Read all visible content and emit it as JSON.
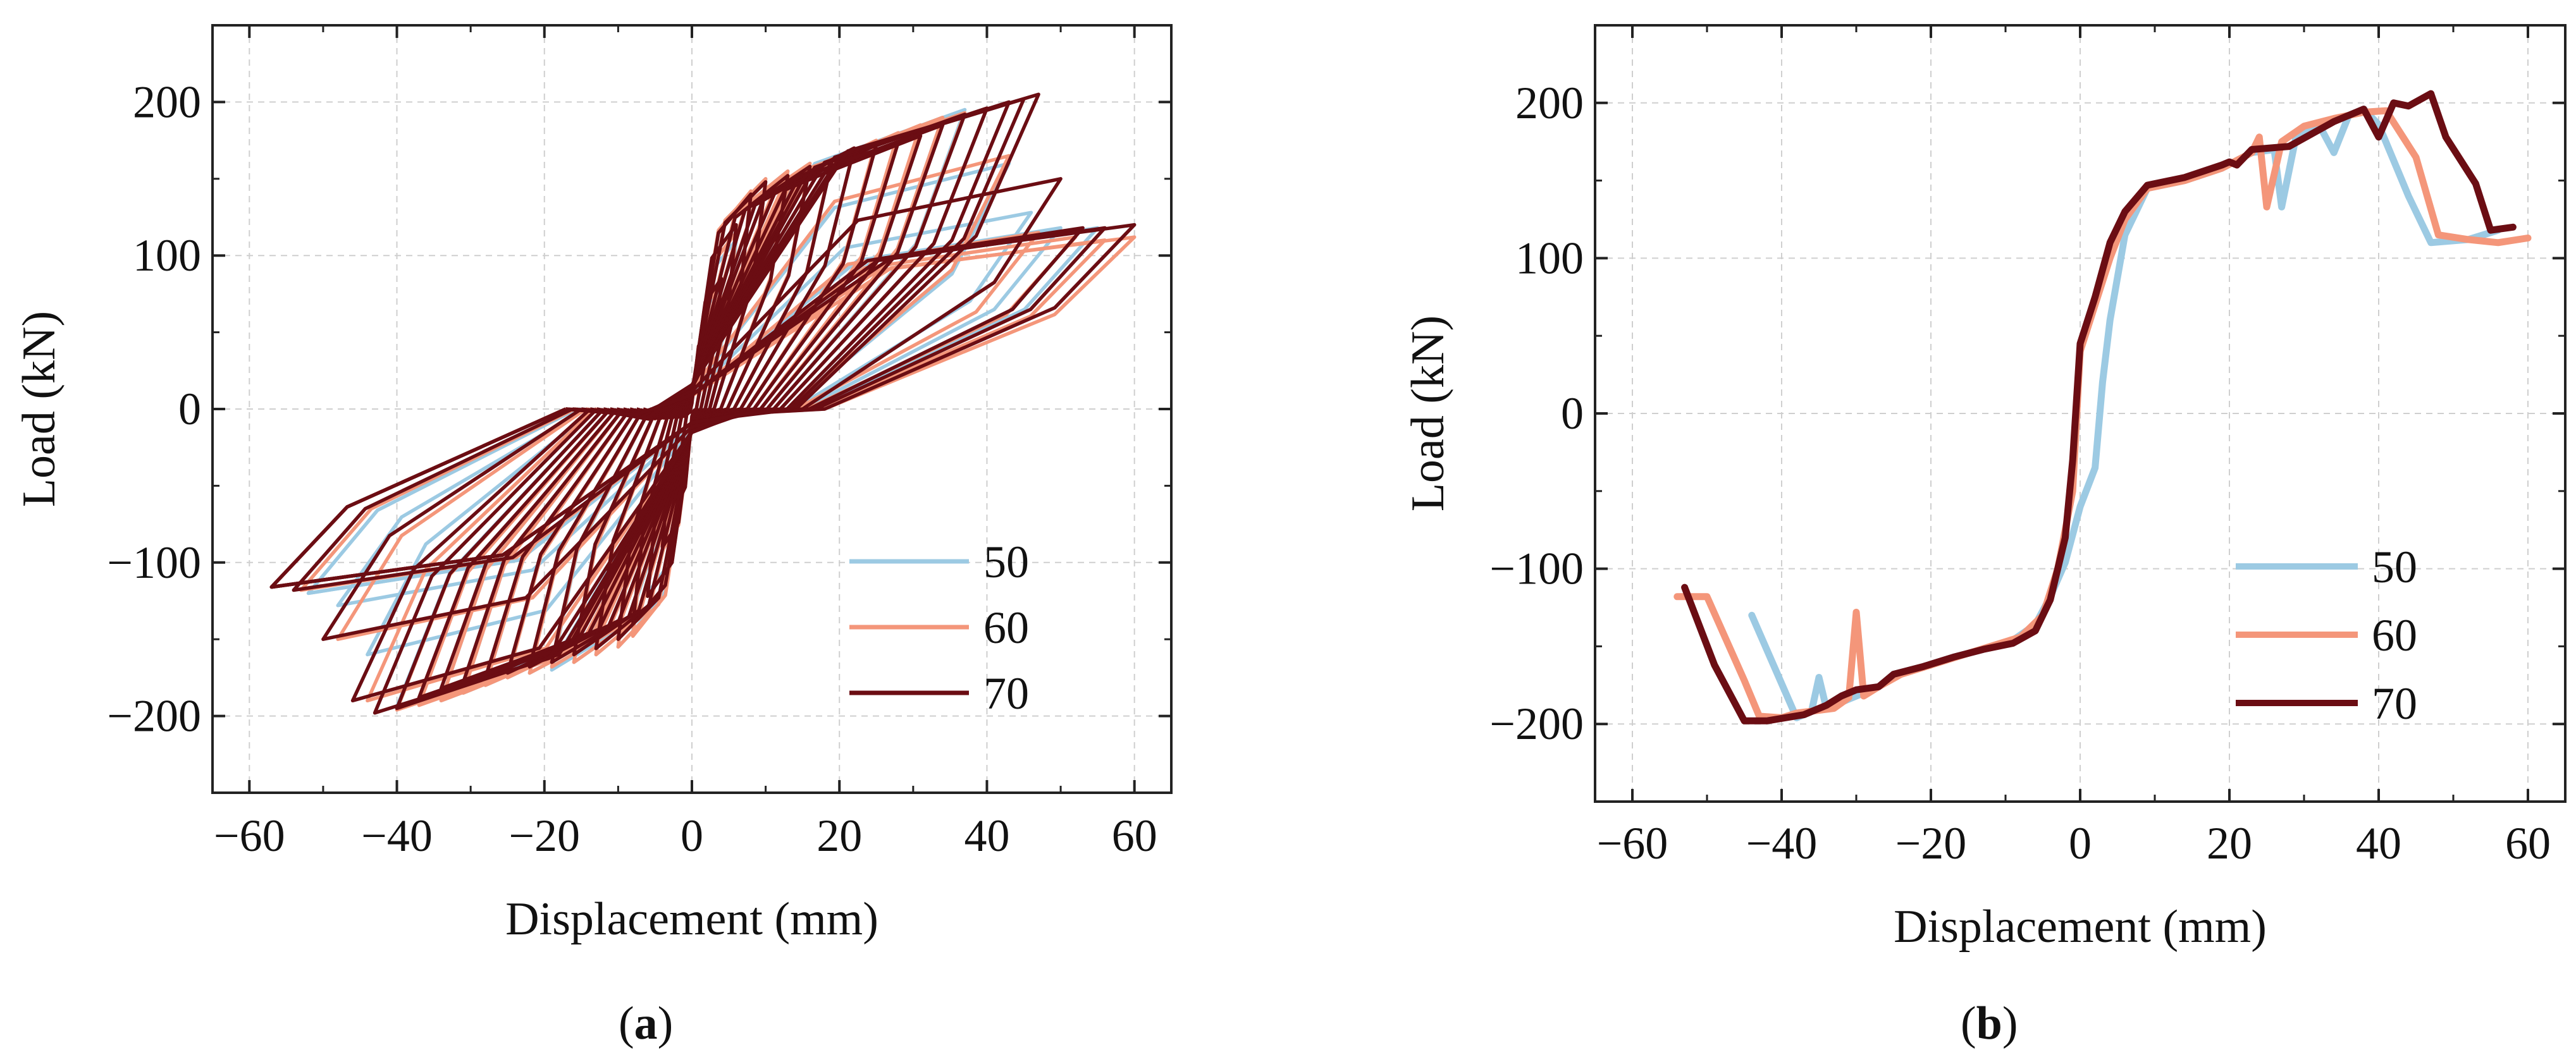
{
  "chart_data": [
    {
      "type": "line",
      "panel": "a",
      "caption_letter": "a",
      "subtype": "hysteresis loops",
      "xlabel": "Displacement (mm)",
      "ylabel": "Load (kN)",
      "xlim": [
        -65,
        65
      ],
      "ylim": [
        -250,
        250
      ],
      "xticks": [
        -60,
        -40,
        -20,
        0,
        20,
        40,
        60
      ],
      "yticks": [
        -200,
        -100,
        0,
        100,
        200
      ],
      "xtick_labels": [
        "−60",
        "−40",
        "−20",
        "0",
        "20",
        "40",
        "60"
      ],
      "ytick_labels": [
        "−200",
        "−100",
        "0",
        "100",
        "200"
      ],
      "grid": true,
      "legend_position": "bottom-right",
      "series": [
        {
          "name": "50",
          "color": "#9ccae3",
          "peaks_pos": [
            [
              2,
              48
            ],
            [
              4,
              80
            ],
            [
              6,
              110
            ],
            [
              8,
              140
            ],
            [
              10,
              150
            ],
            [
              13,
              155
            ],
            [
              16,
              160
            ],
            [
              19,
              162
            ],
            [
              22,
              170
            ],
            [
              25,
              172
            ],
            [
              28,
              178
            ],
            [
              31,
              184
            ],
            [
              34,
              190
            ],
            [
              37,
              195
            ],
            [
              40,
              196
            ],
            [
              43,
              160
            ],
            [
              46,
              128
            ],
            [
              50,
              118
            ],
            [
              55,
              118
            ]
          ],
          "peaks_neg": [
            [
              -2,
              -60
            ],
            [
              -4,
              -90
            ],
            [
              -6,
              -120
            ],
            [
              -8,
              -145
            ],
            [
              -10,
              -155
            ],
            [
              -13,
              -160
            ],
            [
              -16,
              -165
            ],
            [
              -19,
              -170
            ],
            [
              -22,
              -172
            ],
            [
              -25,
              -175
            ],
            [
              -28,
              -180
            ],
            [
              -31,
              -185
            ],
            [
              -34,
              -190
            ],
            [
              -37,
              -192
            ],
            [
              -40,
              -194
            ],
            [
              -44,
              -160
            ],
            [
              -48,
              -128
            ],
            [
              -52,
              -120
            ]
          ]
        },
        {
          "name": "60",
          "color": "#f4967a",
          "peaks_pos": [
            [
              2,
              50
            ],
            [
              4,
              82
            ],
            [
              6,
              115
            ],
            [
              8,
              142
            ],
            [
              10,
              150
            ],
            [
              13,
              155
            ],
            [
              16,
              160
            ],
            [
              19,
              163
            ],
            [
              22,
              170
            ],
            [
              25,
              175
            ],
            [
              28,
              180
            ],
            [
              31,
              185
            ],
            [
              34,
              190
            ],
            [
              37,
              193
            ],
            [
              40,
              196
            ],
            [
              43,
              165
            ],
            [
              47,
              115
            ],
            [
              52,
              112
            ],
            [
              56,
              110
            ],
            [
              60,
              112
            ]
          ],
          "peaks_neg": [
            [
              -2,
              -62
            ],
            [
              -4,
              -92
            ],
            [
              -6,
              -122
            ],
            [
              -8,
              -148
            ],
            [
              -10,
              -155
            ],
            [
              -13,
              -160
            ],
            [
              -16,
              -165
            ],
            [
              -19,
              -168
            ],
            [
              -22,
              -172
            ],
            [
              -25,
              -175
            ],
            [
              -28,
              -180
            ],
            [
              -31,
              -185
            ],
            [
              -34,
              -190
            ],
            [
              -37,
              -193
            ],
            [
              -40,
              -196
            ],
            [
              -44,
              -190
            ],
            [
              -48,
              -150
            ],
            [
              -53,
              -118
            ],
            [
              -57,
              -116
            ]
          ]
        },
        {
          "name": "70",
          "color": "#6b0d13",
          "peaks_pos": [
            [
              2,
              50
            ],
            [
              4,
              85
            ],
            [
              6,
              120
            ],
            [
              8,
              140
            ],
            [
              10,
              148
            ],
            [
              13,
              152
            ],
            [
              16,
              158
            ],
            [
              19,
              162
            ],
            [
              22,
              170
            ],
            [
              25,
              172
            ],
            [
              28,
              174
            ],
            [
              31,
              178
            ],
            [
              34,
              185
            ],
            [
              37,
              192
            ],
            [
              40,
              196
            ],
            [
              43,
              200
            ],
            [
              45,
              202
            ],
            [
              47,
              205
            ],
            [
              50,
              150
            ],
            [
              53,
              118
            ],
            [
              56,
              118
            ],
            [
              60,
              120
            ]
          ],
          "peaks_neg": [
            [
              -2,
              -62
            ],
            [
              -4,
              -90
            ],
            [
              -6,
              -122
            ],
            [
              -8,
              -140
            ],
            [
              -10,
              -150
            ],
            [
              -13,
              -156
            ],
            [
              -16,
              -160
            ],
            [
              -19,
              -165
            ],
            [
              -22,
              -168
            ],
            [
              -25,
              -172
            ],
            [
              -28,
              -175
            ],
            [
              -31,
              -178
            ],
            [
              -34,
              -182
            ],
            [
              -37,
              -188
            ],
            [
              -40,
              -195
            ],
            [
              -43,
              -198
            ],
            [
              -46,
              -190
            ],
            [
              -50,
              -150
            ],
            [
              -54,
              -118
            ],
            [
              -57,
              -116
            ]
          ]
        }
      ]
    },
    {
      "type": "line",
      "panel": "b",
      "caption_letter": "b",
      "subtype": "skeleton curves",
      "xlabel": "Displacement (mm)",
      "ylabel": "Load (kN)",
      "xlim": [
        -65,
        65
      ],
      "ylim": [
        -250,
        250
      ],
      "xticks": [
        -60,
        -40,
        -20,
        0,
        20,
        40,
        60
      ],
      "yticks": [
        -200,
        -100,
        0,
        100,
        200
      ],
      "xtick_labels": [
        "−60",
        "−40",
        "−20",
        "0",
        "20",
        "40",
        "60"
      ],
      "ytick_labels": [
        "−200",
        "−100",
        "0",
        "100",
        "200"
      ],
      "grid": true,
      "legend_position": "bottom-right",
      "series": [
        {
          "name": "50",
          "color": "#9ccae3",
          "points": [
            [
              -44,
              -130
            ],
            [
              -38,
              -196
            ],
            [
              -36,
              -192
            ],
            [
              -35,
              -170
            ],
            [
              -34,
              -190
            ],
            [
              -32,
              -186
            ],
            [
              -30,
              -182
            ],
            [
              -27,
              -176
            ],
            [
              -25,
              -168
            ],
            [
              -21,
              -163
            ],
            [
              -17,
              -157
            ],
            [
              -13,
              -152
            ],
            [
              -9,
              -146
            ],
            [
              -6,
              -136
            ],
            [
              -4,
              -118
            ],
            [
              -2,
              -96
            ],
            [
              0,
              -60
            ],
            [
              2,
              -35
            ],
            [
              3,
              20
            ],
            [
              4,
              60
            ],
            [
              6,
              115
            ],
            [
              9,
              145
            ],
            [
              14,
              150
            ],
            [
              19,
              158
            ],
            [
              23,
              168
            ],
            [
              26,
              170
            ],
            [
              27,
              133
            ],
            [
              29,
              180
            ],
            [
              32,
              186
            ],
            [
              34,
              168
            ],
            [
              36,
              192
            ],
            [
              38,
              196
            ],
            [
              40,
              186
            ],
            [
              44,
              140
            ],
            [
              47,
              110
            ],
            [
              52,
              112
            ],
            [
              56,
              118
            ]
          ]
        },
        {
          "name": "60",
          "color": "#f4967a",
          "points": [
            [
              -54,
              -118
            ],
            [
              -50,
              -118
            ],
            [
              -45,
              -172
            ],
            [
              -43,
              -195
            ],
            [
              -40,
              -196
            ],
            [
              -38,
              -193
            ],
            [
              -33,
              -190
            ],
            [
              -31,
              -183
            ],
            [
              -30,
              -128
            ],
            [
              -29,
              -182
            ],
            [
              -27,
              -176
            ],
            [
              -24,
              -168
            ],
            [
              -20,
              -162
            ],
            [
              -16,
              -156
            ],
            [
              -12,
              -150
            ],
            [
              -8,
              -144
            ],
            [
              -5,
              -130
            ],
            [
              -3,
              -100
            ],
            [
              -1,
              -50
            ],
            [
              0,
              40
            ],
            [
              2,
              70
            ],
            [
              4,
              100
            ],
            [
              6,
              125
            ],
            [
              9,
              145
            ],
            [
              14,
              150
            ],
            [
              19,
              158
            ],
            [
              23,
              168
            ],
            [
              24,
              178
            ],
            [
              25,
              133
            ],
            [
              27,
              175
            ],
            [
              30,
              185
            ],
            [
              34,
              190
            ],
            [
              38,
              194
            ],
            [
              41,
              195
            ],
            [
              45,
              165
            ],
            [
              48,
              115
            ],
            [
              52,
              112
            ],
            [
              56,
              110
            ],
            [
              60,
              113
            ]
          ]
        },
        {
          "name": "70",
          "color": "#6b0d13",
          "points": [
            [
              -53,
              -112
            ],
            [
              -49,
              -162
            ],
            [
              -45,
              -198
            ],
            [
              -42,
              -198
            ],
            [
              -37,
              -194
            ],
            [
              -34,
              -188
            ],
            [
              -32,
              -182
            ],
            [
              -30,
              -178
            ],
            [
              -27,
              -176
            ],
            [
              -25,
              -168
            ],
            [
              -21,
              -163
            ],
            [
              -17,
              -157
            ],
            [
              -13,
              -152
            ],
            [
              -9,
              -148
            ],
            [
              -6,
              -140
            ],
            [
              -4,
              -120
            ],
            [
              -2,
              -80
            ],
            [
              -1,
              -30
            ],
            [
              0,
              45
            ],
            [
              2,
              75
            ],
            [
              4,
              110
            ],
            [
              6,
              130
            ],
            [
              9,
              147
            ],
            [
              14,
              152
            ],
            [
              19,
              160
            ],
            [
              20,
              162
            ],
            [
              21,
              160
            ],
            [
              23,
              170
            ],
            [
              28,
              172
            ],
            [
              31,
              180
            ],
            [
              34,
              188
            ],
            [
              38,
              196
            ],
            [
              40,
              178
            ],
            [
              42,
              200
            ],
            [
              44,
              198
            ],
            [
              47,
              206
            ],
            [
              49,
              178
            ],
            [
              53,
              148
            ],
            [
              55,
              118
            ],
            [
              58,
              120
            ]
          ]
        }
      ]
    }
  ]
}
